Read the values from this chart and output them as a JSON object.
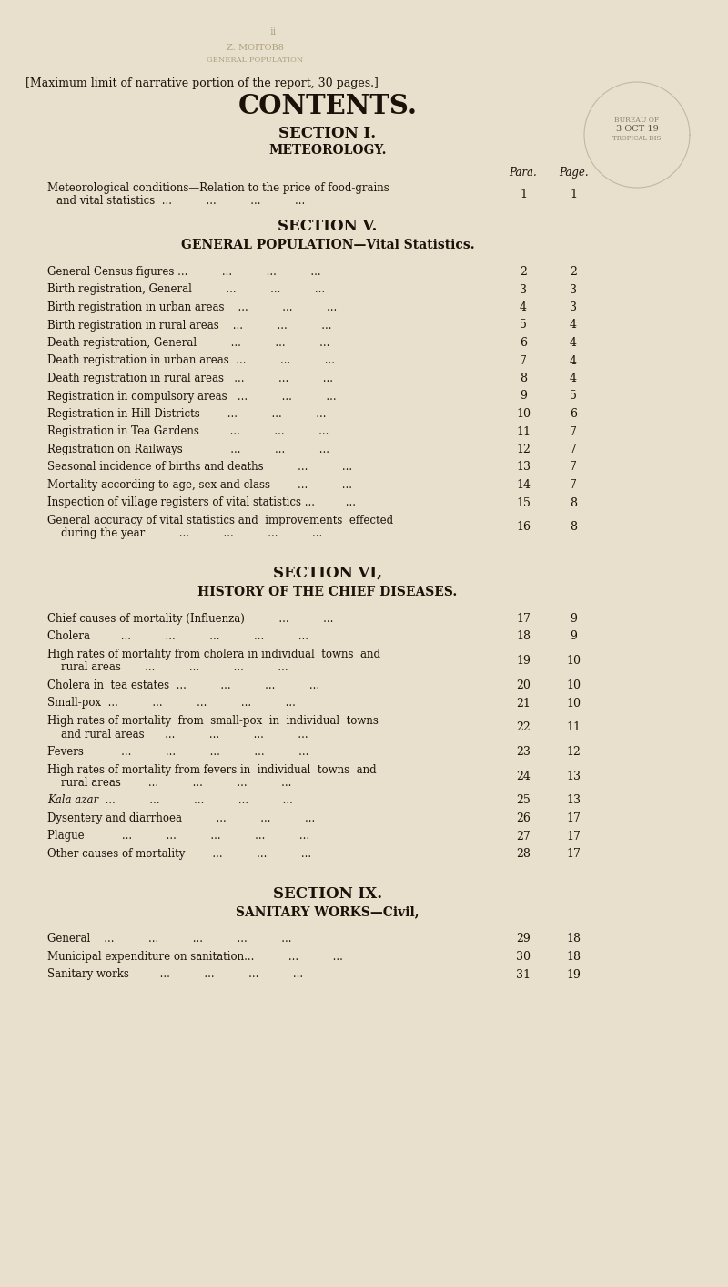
{
  "bg_color": "#e8e0cc",
  "text_color": "#1a1209",
  "page_margin_note": "[Maximum limit of narrative portion of the report, 30 pages.]",
  "title": "CONTENTS.",
  "stamp_text": "3 OCT 19",
  "col_header_para": "Para.",
  "col_header_page": "Page.",
  "sections": [
    {
      "section_header": "SECTION I.",
      "subsection_header": "METEOROLOGY.",
      "entries": [
        {
          "text1": "Meteorological conditions—Relation to the price of food-grains",
          "text2": "and vital statistics  ...          ...          ...          ...",
          "para": "1",
          "page": "1",
          "two_line": true
        }
      ]
    },
    {
      "section_header": "SECTION V.",
      "subsection_header": "GENERAL POPULATION—Vital Statistics.",
      "entries": [
        {
          "text1": "General Census figures ...          ...          ...          ...",
          "para": "2",
          "page": "2"
        },
        {
          "text1": "Birth registration, General          ...          ...          ...",
          "para": "3",
          "page": "3"
        },
        {
          "text1": "Birth registration in urban areas    ...          ...          ...",
          "para": "4",
          "page": "3"
        },
        {
          "text1": "Birth registration in rural areas    ...          ...          ...",
          "para": "5",
          "page": "4"
        },
        {
          "text1": "Death registration, General          ...          ...          ...",
          "para": "6",
          "page": "4"
        },
        {
          "text1": "Death registration in urban areas  ...          ...          ...",
          "para": "7",
          "page": "4"
        },
        {
          "text1": "Death registration in rural areas   ...          ...          ...",
          "para": "8",
          "page": "4"
        },
        {
          "text1": "Registration in compulsory areas   ...          ...          ...",
          "para": "9",
          "page": "5"
        },
        {
          "text1": "Registration in Hill Districts        ...          ...          ...",
          "para": "10",
          "page": "6"
        },
        {
          "text1": "Registration in Tea Gardens         ...          ...          ...",
          "para": "11",
          "page": "7"
        },
        {
          "text1": "Registration on Railways              ...          ...          ...",
          "para": "12",
          "page": "7"
        },
        {
          "text1": "Seasonal incidence of births and deaths          ...          ...",
          "para": "13",
          "page": "7"
        },
        {
          "text1": "Mortality according to age, sex and class        ...          ...",
          "para": "14",
          "page": "7"
        },
        {
          "text1": "Inspection of village registers of vital statistics ...         ...",
          "para": "15",
          "page": "8"
        },
        {
          "text1": "General accuracy of vital statistics and  improvements  effected",
          "text2": "    during the year          ...          ...          ...          ...",
          "para": "16",
          "page": "8",
          "two_line": true
        }
      ]
    },
    {
      "section_header": "SECTION VI,",
      "subsection_header": "HISTORY OF THE CHIEF DISEASES.",
      "entries": [
        {
          "text1": "Chief causes of mortality (Influenza)          ...          ...",
          "para": "17",
          "page": "9"
        },
        {
          "text1": "Cholera         ...          ...          ...          ...          ...",
          "para": "18",
          "page": "9"
        },
        {
          "text1": "High rates of mortality from cholera in individual  towns  and",
          "text2": "    rural areas       ...          ...          ...          ...",
          "para": "19",
          "page": "10",
          "two_line": true
        },
        {
          "text1": "Cholera in  tea estates  ...          ...          ...          ...",
          "para": "20",
          "page": "10"
        },
        {
          "text1": "Small-pox  ...          ...          ...          ...          ...",
          "para": "21",
          "page": "10"
        },
        {
          "text1": "High rates of mortality  from  small-pox  in  individual  towns",
          "text2": "    and rural areas      ...          ...          ...          ...",
          "para": "22",
          "page": "11",
          "two_line": true
        },
        {
          "text1": "Fevers           ...          ...          ...          ...          ...",
          "para": "23",
          "page": "12"
        },
        {
          "text1": "High rates of mortality from fevers in  individual  towns  and",
          "text2": "    rural areas        ...          ...          ...          ...",
          "para": "24",
          "page": "13",
          "two_line": true
        },
        {
          "text1": "Kala azar  ...          ...          ...          ...          ...",
          "para": "25",
          "page": "13",
          "italic": true
        },
        {
          "text1": "Dysentery and diarrhoea          ...          ...          ...",
          "para": "26",
          "page": "17"
        },
        {
          "text1": "Plague           ...          ...          ...          ...          ...",
          "para": "27",
          "page": "17"
        },
        {
          "text1": "Other causes of mortality        ...          ...          ...",
          "para": "28",
          "page": "17"
        }
      ]
    },
    {
      "section_header": "SECTION IX.",
      "subsection_header": "SANITARY WORKS—Civil,",
      "entries": [
        {
          "text1": "General    ...          ...          ...          ...          ...",
          "para": "29",
          "page": "18"
        },
        {
          "text1": "Municipal expenditure on sanitation...          ...          ...",
          "para": "30",
          "page": "18"
        },
        {
          "text1": "Sanitary works         ...          ...          ...          ...",
          "para": "31",
          "page": "19"
        }
      ]
    }
  ]
}
